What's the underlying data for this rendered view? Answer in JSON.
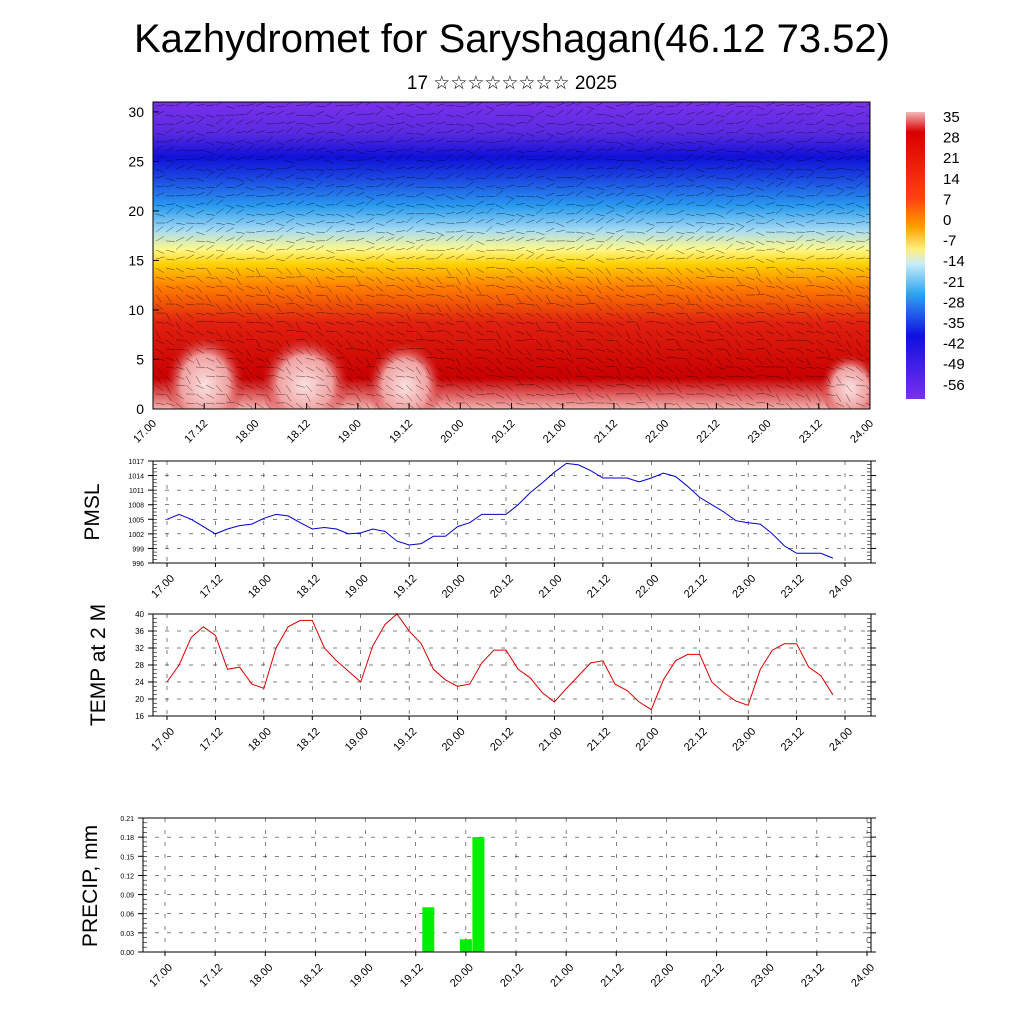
{
  "header": {
    "title": "Kazhydromet for Saryshagan(46.12 73.52)",
    "subtitle": "17 ☆☆☆☆☆☆☆☆ 2025"
  },
  "time_ticks": [
    "17.00",
    "17.12",
    "18.00",
    "18.12",
    "19.00",
    "19.12",
    "20.00",
    "20.12",
    "21.00",
    "21.12",
    "22.00",
    "22.12",
    "23.00",
    "23.12",
    "24.00"
  ],
  "chart_data": [
    {
      "type": "heatmap",
      "xlim": [
        0,
        168
      ],
      "ylim": [
        0,
        31
      ],
      "y_ticks": [
        0,
        5,
        10,
        15,
        20,
        25,
        30
      ],
      "colorbar_labels": [
        "35",
        "28",
        "21",
        "14",
        "7",
        "0",
        "-7",
        "-14",
        "-21",
        "-28",
        "-35",
        "-42",
        "-49",
        "-56"
      ],
      "colors": [
        "#6a2ae8",
        "#1010e8",
        "#2a8ef0",
        "#fffd80",
        "#ffb000",
        "#e82010",
        "#c00000",
        "#f4a8a8"
      ]
    },
    {
      "type": "line",
      "ylabel": "PMSL",
      "ylim": [
        996,
        1017
      ],
      "y_ticks": [
        996,
        999,
        1002,
        1005,
        1008,
        1011,
        1014,
        1017
      ],
      "color": "#0000cc",
      "x": [
        0,
        3,
        6,
        9,
        12,
        15,
        18,
        21,
        24,
        27,
        30,
        33,
        36,
        39,
        42,
        45,
        48,
        51,
        54,
        57,
        60,
        63,
        66,
        69,
        72,
        75,
        78,
        81,
        84,
        87,
        90,
        93,
        96,
        99,
        102,
        105,
        108,
        111,
        114,
        117,
        120,
        123,
        126,
        129,
        132,
        135,
        138,
        141,
        144,
        147,
        150,
        153,
        156,
        159,
        162,
        165
      ],
      "y": [
        1005,
        1006,
        1005,
        1003.5,
        1002,
        1003,
        1003.7,
        1004,
        1005.2,
        1006,
        1005.7,
        1004.3,
        1003,
        1003.3,
        1003,
        1002,
        1002.2,
        1003,
        1002.5,
        1000.5,
        999.7,
        1000,
        1001.5,
        1001.5,
        1003.5,
        1004.3,
        1006,
        1006,
        1006,
        1008,
        1010.5,
        1012.5,
        1014.7,
        1016.5,
        1016.2,
        1015,
        1013.5,
        1013.5,
        1013.5,
        1012.7,
        1013.5,
        1014.5,
        1013.8,
        1011.8,
        1009.5,
        1008,
        1006.5,
        1004.7,
        1004.3,
        1004,
        1002,
        999.5,
        998,
        998,
        998,
        997
      ]
    },
    {
      "type": "line",
      "ylabel": "TEMP at 2 M",
      "ylim": [
        16,
        40
      ],
      "y_ticks": [
        16,
        20,
        24,
        28,
        32,
        36,
        40
      ],
      "color": "#dd0000",
      "x": [
        0,
        3,
        6,
        9,
        12,
        15,
        18,
        21,
        24,
        27,
        30,
        33,
        36,
        39,
        42,
        45,
        48,
        51,
        54,
        57,
        60,
        63,
        66,
        69,
        72,
        75,
        78,
        81,
        84,
        87,
        90,
        93,
        96,
        99,
        102,
        105,
        108,
        111,
        114,
        117,
        120,
        123,
        126,
        129,
        132,
        135,
        138,
        141,
        144,
        147,
        150,
        153,
        156,
        159,
        162,
        165
      ],
      "y": [
        24,
        28,
        34.5,
        37,
        35,
        27,
        27.5,
        23.5,
        22.5,
        32,
        37,
        38.5,
        38.5,
        32,
        29,
        26.5,
        24,
        32.5,
        37.5,
        40,
        36,
        33,
        27,
        24.5,
        23,
        23.5,
        28.5,
        31.5,
        31.5,
        27,
        25,
        21.5,
        19.3,
        22.5,
        25.5,
        28.5,
        29,
        23.5,
        22,
        19.3,
        17.5,
        24.5,
        29,
        30.5,
        30.5,
        24,
        21.5,
        19.5,
        18.5,
        27,
        31.5,
        33,
        33,
        27.5,
        25.5,
        21
      ]
    },
    {
      "type": "bar",
      "ylabel": "PRECIP, mm",
      "ylim": [
        0,
        0.21
      ],
      "y_ticks": [
        0.0,
        0.03,
        0.06,
        0.09,
        0.12,
        0.15,
        0.18,
        0.21
      ],
      "color": "#00ee00",
      "bars": [
        {
          "t": 63,
          "value": 0.07
        },
        {
          "t": 72,
          "value": 0.02
        },
        {
          "t": 75,
          "value": 0.18
        }
      ]
    }
  ]
}
